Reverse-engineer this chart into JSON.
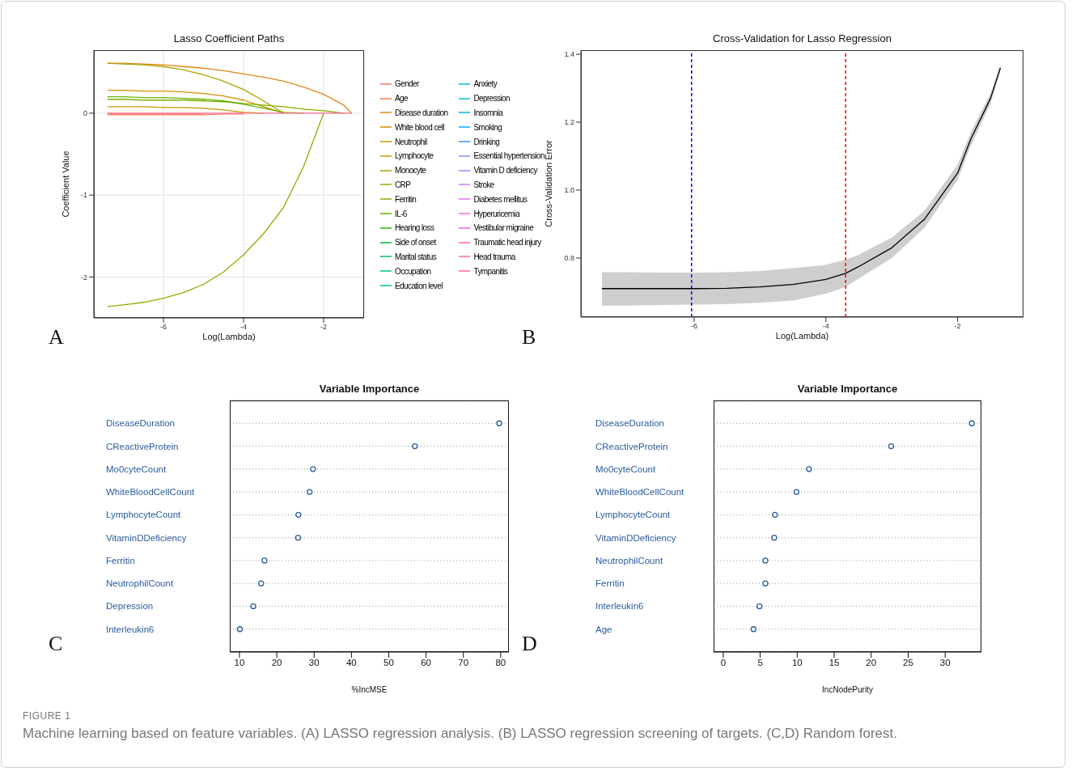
{
  "chart_data": [
    {
      "type": "line",
      "title": "Lasso Coefficient Paths",
      "xlabel": "Log(Lambda)",
      "ylabel": "Coefficient Value",
      "xlim": [
        -7.74,
        -0.99
      ],
      "ylim": [
        -2.5,
        0.77
      ],
      "xticks": [
        -6,
        -4,
        -2
      ],
      "yticks": [
        -2,
        -1,
        0
      ],
      "grid": true,
      "legend": "right",
      "annotations": [
        "A"
      ],
      "x": [
        -7.4,
        -7,
        -6.5,
        -6,
        -5.5,
        -5,
        -4.5,
        -4,
        -3.5,
        -3,
        -2.5,
        -2,
        -1.5,
        -1.3
      ],
      "series": [
        {
          "name": "Gender",
          "color": "#f8766d",
          "values": [
            -0.02,
            -0.02,
            -0.02,
            -0.02,
            -0.02,
            -0.02,
            -0.01,
            -0.01,
            null,
            null,
            null,
            null,
            null,
            null
          ]
        },
        {
          "name": "Age",
          "color": "#ef7f4a",
          "values": [
            -0.01,
            -0.01,
            -0.01,
            -0.01,
            -0.01,
            -0.01,
            null,
            null,
            null,
            null,
            null,
            null,
            null,
            null
          ]
        },
        {
          "name": "Disease duration",
          "color": "#e4861c",
          "values": [
            0.61,
            0.61,
            0.6,
            0.59,
            0.57,
            0.55,
            0.52,
            0.48,
            0.44,
            0.39,
            0.32,
            0.23,
            0.1,
            0
          ]
        },
        {
          "name": "White blood cell",
          "color": "#d98e00",
          "values": [
            0.28,
            0.28,
            0.27,
            0.27,
            0.26,
            0.24,
            0.21,
            0.16,
            0.08,
            0,
            null,
            null,
            null,
            null
          ]
        },
        {
          "name": "Neutrophil",
          "color": "#cd9500",
          "values": [
            0.08,
            0.08,
            0.08,
            0.07,
            0.07,
            0.06,
            0.04,
            0.01,
            0,
            null,
            null,
            null,
            null,
            null
          ]
        },
        {
          "name": "Lymphocyte",
          "color": "#bf9b00",
          "values": [
            null,
            null,
            null,
            null,
            null,
            null,
            null,
            null,
            null,
            null,
            null,
            null,
            null,
            null
          ]
        },
        {
          "name": "Monocyte",
          "color": "#aea200",
          "values": [
            0.61,
            0.6,
            0.59,
            0.57,
            0.53,
            0.47,
            0.39,
            0.29,
            0.15,
            0,
            null,
            null,
            null,
            null
          ]
        },
        {
          "name": "CRP",
          "color": "#9aa800",
          "values": [
            -2.36,
            -2.34,
            -2.31,
            -2.26,
            -2.19,
            -2.09,
            -1.94,
            -1.73,
            -1.47,
            -1.15,
            -0.65,
            0,
            null,
            null
          ]
        },
        {
          "name": "Ferritin",
          "color": "#83ad00",
          "values": [
            0.17,
            0.17,
            0.16,
            0.16,
            0.16,
            0.15,
            0.14,
            0.12,
            0.1,
            0.08,
            0.05,
            0.03,
            0,
            null
          ]
        },
        {
          "name": "IL-6",
          "color": "#64b200",
          "values": [
            0.2,
            0.2,
            0.19,
            0.19,
            0.18,
            0.17,
            0.15,
            0.11,
            0.06,
            0.01,
            0,
            null,
            null,
            null
          ]
        },
        {
          "name": "Hearing loss",
          "color": "#2fb600",
          "values": [
            null,
            null,
            null,
            null,
            null,
            null,
            null,
            null,
            null,
            null,
            null,
            null,
            null,
            null
          ]
        },
        {
          "name": "Side of onset",
          "color": "#00ba38",
          "values": [
            null,
            null,
            null,
            null,
            null,
            null,
            null,
            null,
            null,
            null,
            null,
            null,
            null,
            null
          ]
        },
        {
          "name": "Marital status",
          "color": "#00bd5c",
          "values": [
            null,
            null,
            null,
            null,
            null,
            null,
            null,
            null,
            null,
            null,
            null,
            null,
            null,
            null
          ]
        },
        {
          "name": "Occupation",
          "color": "#00c08b",
          "values": [
            null,
            null,
            null,
            null,
            null,
            null,
            null,
            null,
            null,
            null,
            null,
            null,
            null,
            null
          ]
        },
        {
          "name": "Education level",
          "color": "#00c1a7",
          "values": [
            null,
            null,
            null,
            null,
            null,
            null,
            null,
            null,
            null,
            null,
            null,
            null,
            null,
            null
          ]
        },
        {
          "name": "Anxiety",
          "color": "#00bfc4",
          "values": [
            null,
            null,
            null,
            null,
            null,
            null,
            null,
            null,
            null,
            null,
            null,
            null,
            null,
            null
          ]
        },
        {
          "name": "Depression",
          "color": "#00bcd8",
          "values": [
            null,
            null,
            null,
            null,
            null,
            null,
            null,
            null,
            null,
            null,
            null,
            null,
            null,
            null
          ]
        },
        {
          "name": "Insomnia",
          "color": "#00b4ef",
          "values": [
            null,
            null,
            null,
            null,
            null,
            null,
            null,
            null,
            null,
            null,
            null,
            null,
            null,
            null
          ]
        },
        {
          "name": "Smoking",
          "color": "#00a9ff",
          "values": [
            null,
            null,
            null,
            null,
            null,
            null,
            null,
            null,
            null,
            null,
            null,
            null,
            null,
            null
          ]
        },
        {
          "name": "Drinking",
          "color": "#2c9bff",
          "values": [
            null,
            null,
            null,
            null,
            null,
            null,
            null,
            null,
            null,
            null,
            null,
            null,
            null,
            null
          ]
        },
        {
          "name": "Essential hypertension",
          "color": "#7a8eff",
          "values": [
            null,
            null,
            null,
            null,
            null,
            null,
            null,
            null,
            null,
            null,
            null,
            null,
            null,
            null
          ]
        },
        {
          "name": "Vitamin D deficiency",
          "color": "#a680ff",
          "values": [
            null,
            null,
            null,
            null,
            null,
            null,
            null,
            null,
            null,
            null,
            null,
            null,
            null,
            null
          ]
        },
        {
          "name": "Stroke",
          "color": "#c77cff",
          "values": [
            null,
            null,
            null,
            null,
            null,
            null,
            null,
            null,
            null,
            null,
            null,
            null,
            null,
            null
          ]
        },
        {
          "name": "Diabetes mellitus",
          "color": "#e36ef6",
          "values": [
            null,
            null,
            null,
            null,
            null,
            null,
            null,
            null,
            null,
            null,
            null,
            null,
            null,
            null
          ]
        },
        {
          "name": "Hyperuricemia",
          "color": "#f564e3",
          "values": [
            null,
            null,
            null,
            null,
            null,
            null,
            null,
            null,
            null,
            null,
            null,
            null,
            null,
            null
          ]
        },
        {
          "name": "Vestibular migraine",
          "color": "#fd61d1",
          "values": [
            null,
            null,
            null,
            null,
            null,
            null,
            null,
            null,
            null,
            null,
            null,
            null,
            null,
            null
          ]
        },
        {
          "name": "Traumatic head injury",
          "color": "#ff62bc",
          "values": [
            null,
            null,
            null,
            null,
            null,
            null,
            null,
            null,
            null,
            null,
            null,
            null,
            null,
            null
          ]
        },
        {
          "name": "Head trauma",
          "color": "#ff67a4",
          "values": [
            null,
            null,
            null,
            null,
            null,
            null,
            null,
            null,
            null,
            null,
            null,
            null,
            null,
            null
          ]
        },
        {
          "name": "Tympanitis",
          "color": "#ff6c90",
          "values": [
            0,
            0,
            0,
            0,
            0,
            0,
            0,
            0,
            0,
            0,
            0,
            0,
            0,
            0
          ]
        }
      ]
    },
    {
      "type": "line",
      "title": "Cross-Validation for Lasso Regression",
      "xlabel": "Log(Lambda)",
      "ylabel": "Cross-Validation Error",
      "xlim": [
        -7.72,
        -1.0
      ],
      "ylim": [
        0.626,
        1.412
      ],
      "xticks": [
        -6,
        -4,
        -2
      ],
      "yticks": [
        {
          "value": 0.8,
          "label": "0.8"
        },
        {
          "value": 1,
          "label": "1.0"
        },
        {
          "value": 1.2,
          "label": "1.2"
        },
        {
          "value": 1.4,
          "label": "1.4"
        }
      ],
      "annotations": [
        "B"
      ],
      "x": [
        -7.4,
        -7,
        -6.5,
        -6,
        -5.5,
        -5,
        -4.5,
        -4,
        -3.7,
        -3.5,
        -3,
        -2.5,
        -2,
        -1.8,
        -1.5,
        -1.35
      ],
      "series": [
        {
          "color": "#000000",
          "values": [
            0.71,
            0.71,
            0.71,
            0.71,
            0.711,
            0.715,
            0.722,
            0.737,
            0.755,
            0.775,
            0.83,
            0.915,
            1.05,
            1.15,
            1.27,
            1.36
          ],
          "lower": [
            0.66,
            0.66,
            0.662,
            0.663,
            0.664,
            0.668,
            0.675,
            0.695,
            0.715,
            0.74,
            0.8,
            0.89,
            1.03,
            1.13,
            1.255,
            1.35
          ],
          "upper": [
            0.758,
            0.758,
            0.757,
            0.757,
            0.758,
            0.762,
            0.77,
            0.78,
            0.795,
            0.81,
            0.86,
            0.94,
            1.075,
            1.17,
            1.285,
            1.37
          ]
        }
      ],
      "ref_lines": [
        {
          "axis": "x",
          "value": -6.04,
          "color": "#0000ff",
          "line_style": "dashed"
        },
        {
          "axis": "x",
          "value": -3.7,
          "color": "#ff0000",
          "line_style": "dashed"
        }
      ]
    },
    {
      "type": "scatter",
      "orientation": "horizontal",
      "title": "Variable Importance",
      "xlabel": "%IncMSE",
      "xlim": [
        7.4,
        82.2
      ],
      "xticks": [
        10,
        20,
        30,
        40,
        50,
        60,
        70,
        80
      ],
      "grid": "y",
      "marker": "circle",
      "annotations": [
        "C"
      ],
      "categories": [
        "DiseaseDuration",
        "CReactiveProtein",
        "Mo0cyteCount",
        "WhiteBloodCellCount",
        "LymphocyteCount",
        "VitaminDDeficiency",
        "Ferritin",
        "NeutrophilCount",
        "Depression",
        "Interleukin6"
      ],
      "series": [
        {
          "color": "#2b5c9e",
          "values": [
            79.6,
            57.0,
            29.7,
            28.8,
            25.8,
            25.7,
            16.7,
            15.8,
            13.7,
            10.1
          ]
        }
      ]
    },
    {
      "type": "scatter",
      "orientation": "horizontal",
      "title": "Variable Importance",
      "xlabel": "IncNodePurity",
      "xlim": [
        -1.3,
        34.9
      ],
      "xticks": [
        0,
        5,
        10,
        15,
        20,
        25,
        30
      ],
      "grid": "y",
      "marker": "circle",
      "annotations": [
        "D",
        "FIGURE 1",
        "Machine learning based on feature variables. (A) LASSO regression analysis. (B) LASSO regression screening of targets. (C,D) Random forest."
      ],
      "categories": [
        "DiseaseDuration",
        "CReactiveProtein",
        "Mo0cyteCount",
        "WhiteBloodCellCount",
        "LymphocyteCount",
        "VitaminDDeficiency",
        "NeutrophilCount",
        "Ferritin",
        "Interleukin6",
        "Age"
      ],
      "series": [
        {
          "color": "#2b5c9e",
          "values": [
            33.6,
            22.7,
            11.6,
            9.9,
            7.0,
            6.9,
            5.7,
            5.7,
            4.9,
            4.1
          ]
        }
      ]
    }
  ]
}
